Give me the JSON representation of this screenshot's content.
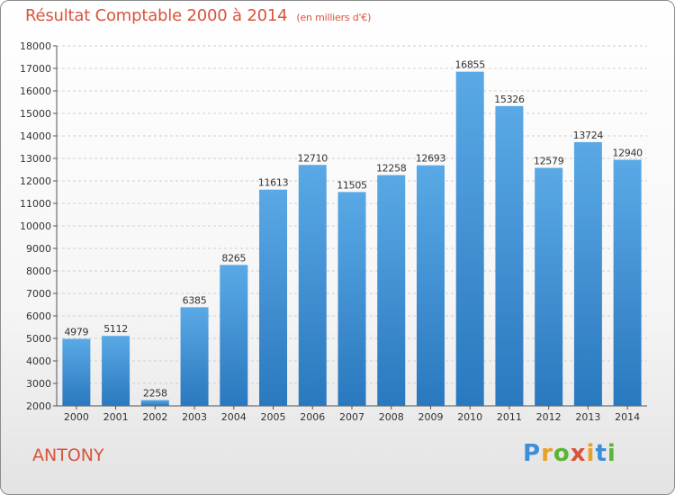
{
  "title": "Résultat Comptable 2000 à 2014",
  "subtitle": "(en milliers d'€)",
  "city": "ANTONY",
  "logo": {
    "text": "Proxiti",
    "colors": [
      "#3a8fd8",
      "#e8a126",
      "#5bb534",
      "#d9533b",
      "#e8a126",
      "#3a8fd8",
      "#5bb534"
    ]
  },
  "colors": {
    "bar_top": "#5aa9e6",
    "bar_bottom": "#2a78be",
    "text_accent": "#d9533b",
    "grid": "#cfcfcf"
  },
  "chart_data": {
    "type": "bar",
    "categories": [
      "2000",
      "2001",
      "2002",
      "2003",
      "2004",
      "2005",
      "2006",
      "2007",
      "2008",
      "2009",
      "2010",
      "2011",
      "2012",
      "2013",
      "2014"
    ],
    "values": [
      4979,
      5112,
      2258,
      6385,
      8265,
      11613,
      12710,
      11505,
      12258,
      12693,
      16855,
      15326,
      12579,
      13724,
      12940
    ],
    "ylim": [
      2000,
      18000
    ],
    "yticks": [
      2000,
      3000,
      4000,
      5000,
      6000,
      7000,
      8000,
      9000,
      10000,
      11000,
      12000,
      13000,
      14000,
      15000,
      16000,
      17000,
      18000
    ],
    "grid": true,
    "xlabel": "",
    "ylabel": ""
  }
}
